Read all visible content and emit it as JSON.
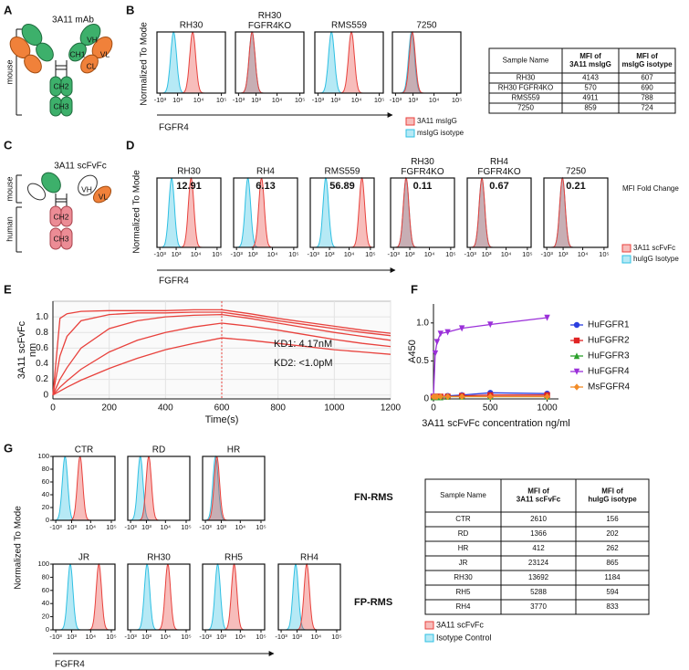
{
  "panel_letters": [
    "A",
    "B",
    "C",
    "D",
    "E",
    "F",
    "G"
  ],
  "panel_a": {
    "title": "3A11 mAb",
    "domains": [
      "VH",
      "VL",
      "CH1",
      "CL",
      "CH2",
      "CH3"
    ],
    "species": "mouse"
  },
  "panel_c": {
    "title": "3A11 scFvFc",
    "domains": [
      "VH",
      "VL",
      "CH2",
      "CH3"
    ],
    "species": [
      "mouse",
      "human"
    ]
  },
  "flow_axis": {
    "xlim": [
      -1500,
      150000
    ],
    "xticks": [
      {
        "value": -1000,
        "label": "-10³"
      },
      {
        "value": 1000,
        "label": "10³"
      },
      {
        "value": 10000,
        "label": "10⁴"
      },
      {
        "value": 100000,
        "label": "10⁵"
      }
    ],
    "ylim": [
      0,
      100
    ],
    "yticks": [
      0,
      20,
      40,
      60,
      80,
      100
    ]
  },
  "panel_b": {
    "ylabel": "Normalized To Mode",
    "xlabel": "FGFR4",
    "legend": [
      {
        "name": "3A11 msIgG",
        "color": "#e8413c"
      },
      {
        "name": "msIgG isotype",
        "color": "#2fc0e3"
      }
    ],
    "plots": [
      {
        "title": "RH30",
        "peaks": [
          5500,
          500
        ]
      },
      {
        "title": "RH30\nFGFR4KO",
        "peaks": [
          500,
          500
        ]
      },
      {
        "title": "RMS559",
        "peaks": [
          6000,
          500
        ]
      },
      {
        "title": "7250",
        "peaks": [
          900,
          800
        ]
      }
    ],
    "table": {
      "header": [
        "Sample Name",
        "MFI of\n3A11 msIgG",
        "MFI of\nmsIgG isotype"
      ],
      "header_colors": [
        "#111111",
        "#e8413c",
        "#29a9e0"
      ],
      "rows": [
        [
          "RH30",
          4143,
          607
        ],
        [
          "RH30 FGFR4KO",
          570,
          690
        ],
        [
          "RMS559",
          4911,
          788
        ],
        [
          "7250",
          859,
          724
        ]
      ]
    }
  },
  "panel_d": {
    "ylabel": "Normalized To Mode",
    "xlabel": "FGFR4",
    "fold_label": "MFI Fold Change",
    "fold_color": "#f07a3c",
    "legend": [
      {
        "name": "3A11 scFvFc",
        "color": "#e8413c"
      },
      {
        "name": "huIgG Isotype",
        "color": "#2fc0e3"
      }
    ],
    "plots": [
      {
        "title": "RH30",
        "fold": 12.91,
        "peaks": [
          6000,
          400
        ]
      },
      {
        "title": "RH4",
        "fold": 6.13,
        "peaks": [
          3000,
          350
        ]
      },
      {
        "title": "RMS559",
        "fold": 56.89,
        "peaks": [
          40000,
          500
        ]
      },
      {
        "title": "RH30\nFGFR4KO",
        "fold": 0.11,
        "peaks": [
          500,
          500
        ]
      },
      {
        "title": "RH4\nFGFR4KO",
        "fold": 0.67,
        "peaks": [
          400,
          400
        ]
      },
      {
        "title": "7250",
        "fold": 0.21,
        "peaks": [
          900,
          900
        ]
      }
    ]
  },
  "panel_g": {
    "ylabel": "Normalized To Mode",
    "xlabel": "FGFR4",
    "groups": [
      "FN-RMS",
      "FP-RMS"
    ],
    "legend": [
      {
        "name": "3A11 scFvFc",
        "color": "#e8413c"
      },
      {
        "name": "Isotype Control",
        "color": "#2fc0e3"
      }
    ],
    "plots": [
      {
        "title": "CTR",
        "peaks": [
          3000,
          150
        ]
      },
      {
        "title": "RD",
        "peaks": [
          1400,
          200
        ]
      },
      {
        "title": "HR",
        "peaks": [
          400,
          250
        ]
      },
      {
        "title": "JR",
        "peaks": [
          25000,
          800
        ]
      },
      {
        "title": "RH30",
        "peaks": [
          13000,
          1100
        ]
      },
      {
        "title": "RH5",
        "peaks": [
          5000,
          500
        ]
      },
      {
        "title": "RH4",
        "peaks": [
          3500,
          800
        ]
      }
    ],
    "table": {
      "header": [
        "Sample Name",
        "MFI of\n3A11 scFvFc",
        "MFI of\nhuIgG isotype"
      ],
      "header_colors": [
        "#111111",
        "#e8413c",
        "#29a9e0"
      ],
      "rows": [
        [
          "CTR",
          2610,
          156
        ],
        [
          "RD",
          1366,
          202
        ],
        [
          "HR",
          412,
          262
        ],
        [
          "JR",
          23124,
          865
        ],
        [
          "RH30",
          13692,
          1184
        ],
        [
          "RH5",
          5288,
          594
        ],
        [
          "RH4",
          3770,
          833
        ]
      ]
    }
  },
  "chart_data": [
    {
      "type": "line",
      "ylabel": "3A11 scFvFc\nnm",
      "xlabel": "Time(s)",
      "annotations": [
        "KD1: 4.17nM",
        "KD2: <1.0pM"
      ],
      "x": [
        0,
        25,
        50,
        100,
        200,
        300,
        400,
        500,
        600,
        700,
        800,
        900,
        1000,
        1100,
        1200
      ],
      "series": [
        {
          "color": "#e8413c",
          "values": [
            0,
            0.98,
            1.04,
            1.07,
            1.08,
            1.08,
            1.08,
            1.09,
            1.09,
            1.04,
            0.98,
            0.93,
            0.88,
            0.83,
            0.79
          ]
        },
        {
          "color": "#e8413c",
          "values": [
            0,
            0.5,
            0.75,
            0.95,
            1.03,
            1.05,
            1.05,
            1.06,
            1.06,
            1.01,
            0.95,
            0.9,
            0.85,
            0.8,
            0.76
          ]
        },
        {
          "color": "#e8413c",
          "values": [
            0,
            0.2,
            0.35,
            0.6,
            0.85,
            0.95,
            1.0,
            1.02,
            1.03,
            0.98,
            0.92,
            0.86,
            0.8,
            0.75,
            0.7
          ]
        },
        {
          "color": "#e8413c",
          "values": [
            0,
            0.1,
            0.18,
            0.33,
            0.55,
            0.7,
            0.8,
            0.87,
            0.92,
            0.88,
            0.83,
            0.77,
            0.71,
            0.66,
            0.62
          ]
        },
        {
          "color": "#e8413c",
          "values": [
            0,
            0.05,
            0.1,
            0.19,
            0.34,
            0.47,
            0.58,
            0.66,
            0.73,
            0.7,
            0.66,
            0.62,
            0.58,
            0.55,
            0.52
          ]
        }
      ],
      "xlim": [
        0,
        1200
      ],
      "ylim": [
        -0.05,
        1.2
      ],
      "xticks": [
        0,
        200,
        400,
        600,
        800,
        1000,
        1200
      ],
      "yticks": [
        0,
        0.2,
        0.4,
        0.6,
        0.8,
        {
          "value": 1,
          "label": "1.0"
        }
      ],
      "grid": true,
      "vline_x": 600
    },
    {
      "type": "line",
      "ylabel": "A450",
      "xlabel": "3A11 scFvFc concentration ng/ml",
      "x": [
        0,
        15.6,
        31.25,
        62.5,
        125,
        250,
        500,
        1000
      ],
      "series": [
        {
          "name": "HuFGFR1",
          "color": "#2b3fe0",
          "marker": "circle",
          "values": [
            0.03,
            0.03,
            0.03,
            0.03,
            0.04,
            0.05,
            0.08,
            0.07
          ]
        },
        {
          "name": "HuFGFR2",
          "color": "#e02424",
          "marker": "square",
          "values": [
            0.03,
            0.03,
            0.03,
            0.03,
            0.03,
            0.04,
            0.05,
            0.05
          ]
        },
        {
          "name": "HuFGFR3",
          "color": "#2ca02c",
          "marker": "triangle",
          "values": [
            0.02,
            0.02,
            0.02,
            0.02,
            0.03,
            0.03,
            0.03,
            0.03
          ]
        },
        {
          "name": "HuFGFR4",
          "color": "#9b30d9",
          "marker": "triangle-down",
          "values": [
            0.03,
            0.6,
            0.75,
            0.86,
            0.88,
            0.93,
            0.98,
            1.07
          ]
        },
        {
          "name": "MsFGFR4",
          "color": "#f28c28",
          "marker": "diamond",
          "values": [
            0.03,
            0.03,
            0.03,
            0.03,
            0.03,
            0.03,
            0.03,
            0.03
          ]
        }
      ],
      "xlim": [
        0,
        1100
      ],
      "ylim": [
        0,
        1.25
      ],
      "xticks": [
        0,
        500,
        1000
      ],
      "yticks": [
        0,
        0.5,
        {
          "value": 1,
          "label": "1.0"
        }
      ],
      "grid": false,
      "legend": "right"
    }
  ]
}
